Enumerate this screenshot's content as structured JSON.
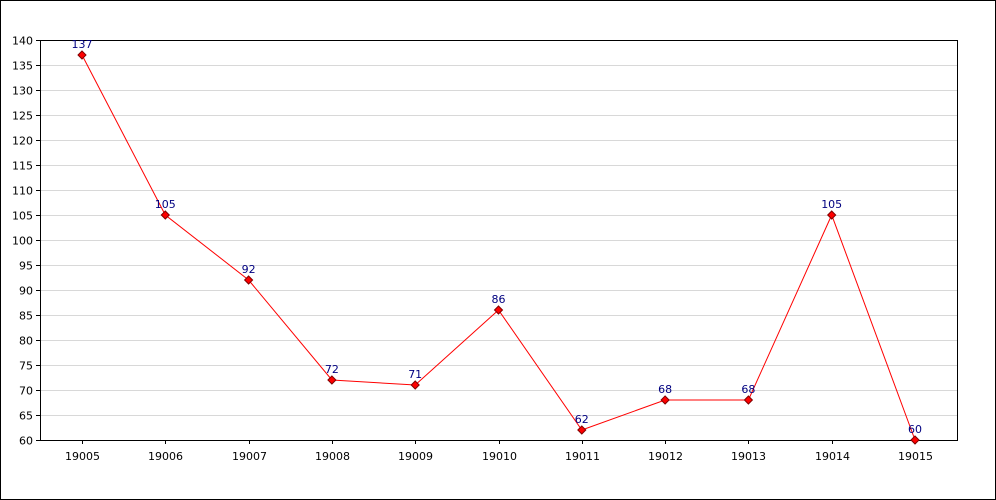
{
  "chart_data": {
    "type": "line",
    "title": "",
    "xlabel": "",
    "ylabel": "",
    "categories": [
      "19005",
      "19006",
      "19007",
      "19008",
      "19009",
      "19010",
      "19011",
      "19012",
      "19013",
      "19014",
      "19015"
    ],
    "series": [
      {
        "values": [
          137,
          105,
          92,
          72,
          71,
          86,
          62,
          68,
          68,
          105,
          60
        ],
        "labels": [
          "137",
          "105",
          "92",
          "72",
          "71",
          "86",
          "62",
          "68",
          "68",
          "105",
          "60"
        ],
        "line_color": "#ff0000",
        "marker_fill": "#ff0000",
        "marker_stroke": "#800000"
      }
    ],
    "ylim": [
      60,
      140
    ],
    "yticks": [
      "60",
      "65",
      "70",
      "75",
      "80",
      "85",
      "90",
      "95",
      "100",
      "105",
      "110",
      "115",
      "120",
      "125",
      "130",
      "135",
      "140"
    ],
    "grid": true,
    "grid_color": "#d8d8d8",
    "data_label_color": "#000080",
    "legend": "none"
  }
}
